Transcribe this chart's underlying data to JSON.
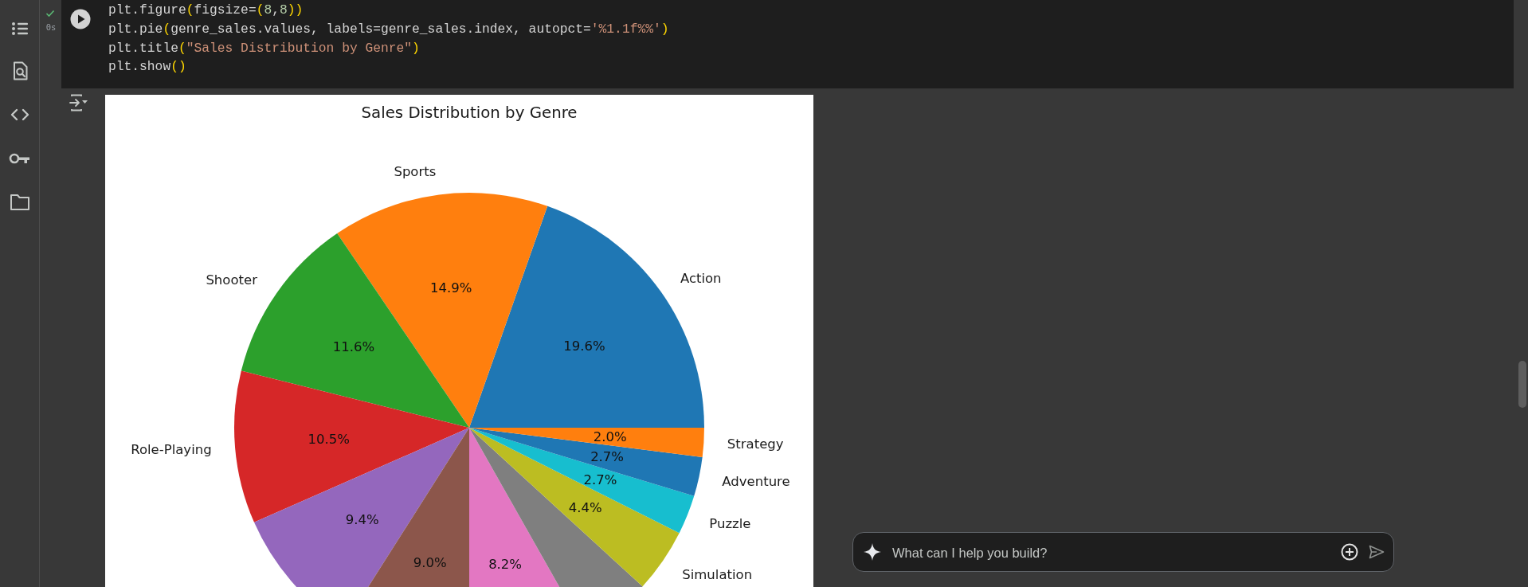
{
  "chart_data": {
    "type": "pie",
    "title": "Sales Distribution by Genre",
    "categories": [
      "Action",
      "Sports",
      "Shooter",
      "Role-Playing",
      null,
      null,
      null,
      null,
      "Simulation",
      "Puzzle",
      "Adventure",
      "Strategy"
    ],
    "values": [
      19.6,
      14.9,
      11.6,
      10.5,
      9.4,
      9.0,
      8.2,
      5.0,
      4.4,
      2.7,
      2.7,
      2.0
    ],
    "colors": [
      "#1f77b4",
      "#ff7f0e",
      "#2ca02c",
      "#d62728",
      "#9467bd",
      "#8c564b",
      "#e377c2",
      "#7f7f7f",
      "#bcbd22",
      "#17becf",
      "#1f77b4",
      "#ff7f0e"
    ],
    "value_labels": [
      "19.6%",
      "14.9%",
      "11.6%",
      "10.5%",
      "9.4%",
      "9.0%",
      "8.2%",
      null,
      "4.4%",
      "2.7%",
      "2.7%",
      "2.0%"
    ],
    "annotations": [
      "plt.figure(figsize=(8,8))",
      "plt.pie(genre_sales.values, labels=genre_sales.index, autopct='%1.1f%%')",
      "plt.title(\"Sales Distribution by Genre\")",
      "plt.show()",
      "0s",
      "What can I help you build?"
    ]
  }
}
